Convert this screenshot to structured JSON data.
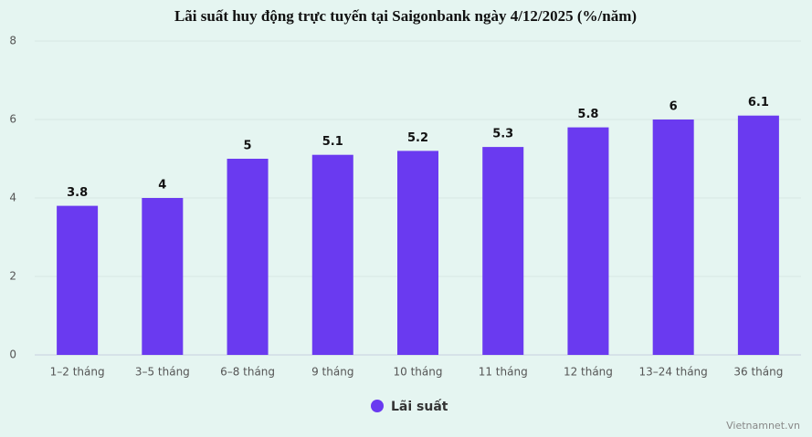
{
  "chart_data": {
    "type": "bar",
    "title": "Lãi suất huy động trực tuyến tại Saigonbank ngày 4/12/2025 (%/năm)",
    "categories": [
      "1–2 tháng",
      "3–5 tháng",
      "6–8 tháng",
      "9 tháng",
      "10 tháng",
      "11 tháng",
      "12 tháng",
      "13–24 tháng",
      "36 tháng"
    ],
    "series": [
      {
        "name": "Lãi suất",
        "color": "#6a3af0",
        "values": [
          3.8,
          4,
          5,
          5.1,
          5.2,
          5.3,
          5.8,
          6,
          6.1
        ]
      }
    ],
    "ylim": [
      0,
      8
    ],
    "yticks": [
      0,
      2,
      4,
      6,
      8
    ],
    "grid": true,
    "source": "Vietnamnet.vn"
  }
}
